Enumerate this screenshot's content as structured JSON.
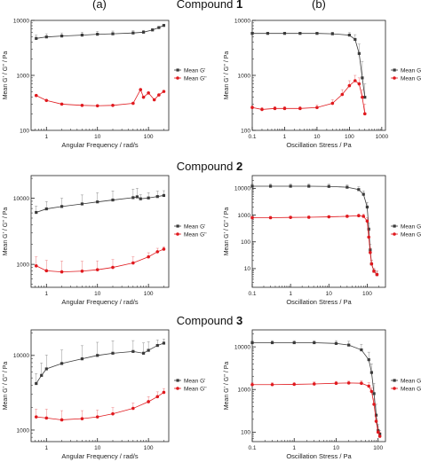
{
  "figure": {
    "column_a_label": "(a)",
    "column_b_label": "(b)",
    "compound_word": "Compound",
    "compounds": [
      "1",
      "2",
      "3"
    ]
  },
  "colors": {
    "g_prime": "#3a3a3a",
    "g_double_prime": "#e0191e"
  },
  "chart_data": [
    {
      "id": "1a",
      "type": "scatter",
      "xscale": "log",
      "yscale": "log",
      "xlabel": "Angular Frequency / rad/s",
      "ylabel": "Mean G' / G'' / Pa",
      "xlim": [
        0.5,
        250
      ],
      "ylim": [
        100,
        10000
      ],
      "xticks": [
        1,
        10,
        100
      ],
      "xticklabels": [
        "1",
        "10",
        "100"
      ],
      "yticks": [
        100,
        1000,
        10000
      ],
      "yticklabels": [
        "100",
        "1000",
        "10000"
      ],
      "legend": "center-right",
      "series": [
        {
          "name": "Mean G'",
          "color": "#3a3a3a",
          "errorbars": true,
          "x": [
            0.63,
            1,
            2,
            5,
            10,
            20,
            50,
            80,
            120,
            160,
            200
          ],
          "y": [
            4700,
            5000,
            5200,
            5400,
            5600,
            5700,
            5900,
            6100,
            6700,
            7400,
            8100
          ],
          "err": [
            700,
            700,
            700,
            700,
            700,
            700,
            600,
            500,
            400,
            300,
            300
          ]
        },
        {
          "name": "Mean G''",
          "color": "#e0191e",
          "errorbars": false,
          "x": [
            0.63,
            1,
            2,
            5,
            10,
            20,
            50,
            70,
            80,
            100,
            130,
            160,
            200
          ],
          "y": [
            430,
            350,
            300,
            285,
            280,
            285,
            310,
            550,
            400,
            480,
            360,
            440,
            510
          ],
          "err": [
            0,
            0,
            0,
            0,
            0,
            0,
            0,
            0,
            0,
            0,
            0,
            0,
            0
          ]
        }
      ]
    },
    {
      "id": "1b",
      "type": "scatter",
      "xscale": "log",
      "yscale": "log",
      "xlabel": "Oscillation Stress / Pa",
      "ylabel": "Mean G' / G'' / Pa",
      "xlim": [
        0.1,
        1300
      ],
      "ylim": [
        100,
        10000
      ],
      "xticks": [
        0.1,
        1,
        10,
        100,
        1000
      ],
      "xticklabels": [
        "0.1",
        "1",
        "10",
        "100",
        "1000"
      ],
      "yticks": [
        100,
        1000,
        10000
      ],
      "yticklabels": [
        "100",
        "1000",
        "10000"
      ],
      "legend": "center-right",
      "series": [
        {
          "name": "Mean G'",
          "color": "#3a3a3a",
          "errorbars": true,
          "x": [
            0.1,
            0.3,
            1,
            3,
            10,
            30,
            100,
            150,
            200,
            250,
            300
          ],
          "y": [
            5800,
            5800,
            5800,
            5800,
            5800,
            5700,
            5400,
            4500,
            2500,
            900,
            400
          ],
          "err": [
            300,
            300,
            300,
            300,
            300,
            400,
            600,
            1000,
            1200,
            900,
            300
          ]
        },
        {
          "name": "Mean G''",
          "color": "#e0191e",
          "errorbars": true,
          "x": [
            0.1,
            0.2,
            0.5,
            1,
            3,
            10,
            30,
            60,
            100,
            150,
            200,
            250,
            300
          ],
          "y": [
            260,
            240,
            250,
            250,
            250,
            260,
            310,
            450,
            650,
            800,
            700,
            400,
            200
          ],
          "err": [
            20,
            20,
            20,
            20,
            20,
            30,
            50,
            100,
            150,
            200,
            200,
            150,
            100
          ]
        }
      ]
    },
    {
      "id": "2a",
      "type": "scatter",
      "xscale": "log",
      "yscale": "log",
      "xlabel": "Angular Frequency / rad/s",
      "ylabel": "Mean G' / G'' / Pa",
      "xlim": [
        0.5,
        250
      ],
      "ylim": [
        450,
        22000
      ],
      "xticks": [
        1,
        10,
        100
      ],
      "xticklabels": [
        "1",
        "10",
        "100"
      ],
      "yticks": [
        1000,
        10000
      ],
      "yticklabels": [
        "1000",
        "10000"
      ],
      "legend": "center-right",
      "series": [
        {
          "name": "Mean G'",
          "color": "#3a3a3a",
          "errorbars": true,
          "x": [
            0.63,
            1,
            2,
            5,
            10,
            20,
            50,
            60,
            70,
            100,
            150,
            200
          ],
          "y": [
            6100,
            6900,
            7500,
            8200,
            8800,
            9400,
            10200,
            10500,
            9800,
            10100,
            10600,
            11000
          ],
          "err": [
            1500,
            2000,
            2500,
            3000,
            3300,
            3500,
            3500,
            3600,
            1500,
            2000,
            2200,
            2000
          ]
        },
        {
          "name": "Mean G''",
          "color": "#e0191e",
          "errorbars": true,
          "x": [
            0.63,
            1,
            2,
            5,
            10,
            20,
            50,
            100,
            150,
            200
          ],
          "y": [
            950,
            800,
            770,
            790,
            830,
            900,
            1050,
            1300,
            1550,
            1700
          ],
          "err": [
            350,
            350,
            350,
            320,
            300,
            280,
            250,
            200,
            200,
            150
          ]
        }
      ]
    },
    {
      "id": "2b",
      "type": "scatter",
      "xscale": "log",
      "yscale": "log",
      "xlabel": "Oscillation Stress / Pa",
      "ylabel": "Mean G' / G'' / Pa",
      "xlim": [
        0.1,
        300
      ],
      "ylim": [
        2,
        30000
      ],
      "xticks": [
        0.1,
        1,
        10,
        100
      ],
      "xticklabels": [
        "0.1",
        "1",
        "10",
        "100"
      ],
      "yticks": [
        10,
        100,
        1000,
        10000
      ],
      "yticklabels": [
        "10",
        "100",
        "1000",
        "10000"
      ],
      "legend": "center-right",
      "series": [
        {
          "name": "Mean G'",
          "color": "#3a3a3a",
          "errorbars": true,
          "x": [
            0.1,
            0.3,
            1,
            3,
            10,
            30,
            60,
            80,
            100,
            110,
            120,
            130,
            150,
            180
          ],
          "y": [
            12000,
            12000,
            12000,
            12000,
            11800,
            11000,
            9000,
            6000,
            2000,
            300,
            50,
            15,
            8,
            6
          ],
          "err": [
            2500,
            2500,
            2500,
            2500,
            2500,
            2500,
            2500,
            2000,
            1000,
            200,
            30,
            5,
            2,
            2
          ]
        },
        {
          "name": "Mean G''",
          "color": "#e0191e",
          "errorbars": true,
          "x": [
            0.1,
            0.3,
            1,
            3,
            10,
            30,
            60,
            80,
            100,
            110,
            120,
            130,
            150,
            180
          ],
          "y": [
            800,
            800,
            820,
            830,
            860,
            900,
            950,
            900,
            600,
            150,
            40,
            15,
            8,
            6
          ],
          "err": [
            100,
            100,
            100,
            100,
            100,
            120,
            150,
            200,
            200,
            100,
            20,
            5,
            2,
            2
          ]
        }
      ]
    },
    {
      "id": "3a",
      "type": "scatter",
      "xscale": "log",
      "yscale": "log",
      "xlabel": "Angular Frequency / rad/s",
      "ylabel": "Mean G' / G'' / Pa",
      "xlim": [
        0.5,
        250
      ],
      "ylim": [
        700,
        22000
      ],
      "xticks": [
        1,
        10,
        100
      ],
      "xticklabels": [
        "1",
        "10",
        "100"
      ],
      "yticks": [
        1000,
        10000
      ],
      "yticklabels": [
        "1000",
        "10000"
      ],
      "legend": "center-right",
      "series": [
        {
          "name": "Mean G'",
          "color": "#3a3a3a",
          "errorbars": true,
          "x": [
            0.63,
            0.8,
            1,
            2,
            5,
            10,
            20,
            50,
            80,
            100,
            150,
            200
          ],
          "y": [
            4200,
            5400,
            6600,
            7800,
            9000,
            10000,
            10700,
            11300,
            10700,
            11700,
            13600,
            14600
          ],
          "err": [
            1500,
            2500,
            3500,
            4000,
            4500,
            5000,
            5000,
            4500,
            4000,
            3500,
            2500,
            2000
          ]
        },
        {
          "name": "Mean G''",
          "color": "#e0191e",
          "errorbars": true,
          "x": [
            0.63,
            1,
            2,
            5,
            10,
            20,
            50,
            100,
            150,
            200
          ],
          "y": [
            1500,
            1450,
            1370,
            1420,
            1500,
            1650,
            1950,
            2400,
            2800,
            3200
          ],
          "err": [
            400,
            450,
            450,
            400,
            350,
            350,
            350,
            400,
            450,
            400
          ]
        }
      ]
    },
    {
      "id": "3b",
      "type": "scatter",
      "xscale": "log",
      "yscale": "log",
      "xlabel": "Oscillation Stress / Pa",
      "ylabel": "Mean G' / G'' / Pa",
      "xlim": [
        0.1,
        150
      ],
      "ylim": [
        60,
        25000
      ],
      "xticks": [
        0.1,
        1,
        10,
        100
      ],
      "xticklabels": [
        "0.1",
        "1",
        "10",
        "100"
      ],
      "yticks": [
        100,
        1000,
        10000
      ],
      "yticklabels": [
        "100",
        "1000",
        "10000"
      ],
      "legend": "center-right",
      "series": [
        {
          "name": "Mean G'",
          "color": "#3a3a3a",
          "errorbars": true,
          "x": [
            0.1,
            0.3,
            1,
            3,
            10,
            20,
            40,
            60,
            70,
            80,
            90,
            100,
            110
          ],
          "y": [
            12500,
            12500,
            12500,
            12500,
            12000,
            11000,
            8500,
            5000,
            2500,
            800,
            250,
            110,
            90
          ],
          "err": [
            1500,
            1500,
            1500,
            1500,
            2000,
            2500,
            3000,
            2500,
            1500,
            600,
            200,
            40,
            20
          ]
        },
        {
          "name": "Mean G''",
          "color": "#e0191e",
          "errorbars": true,
          "x": [
            0.1,
            0.3,
            1,
            3,
            10,
            20,
            40,
            60,
            70,
            80,
            90,
            100,
            110
          ],
          "y": [
            1300,
            1300,
            1320,
            1350,
            1400,
            1420,
            1400,
            1200,
            900,
            450,
            180,
            100,
            80
          ],
          "err": [
            150,
            150,
            150,
            150,
            150,
            150,
            200,
            250,
            200,
            150,
            60,
            30,
            20
          ]
        }
      ]
    }
  ]
}
